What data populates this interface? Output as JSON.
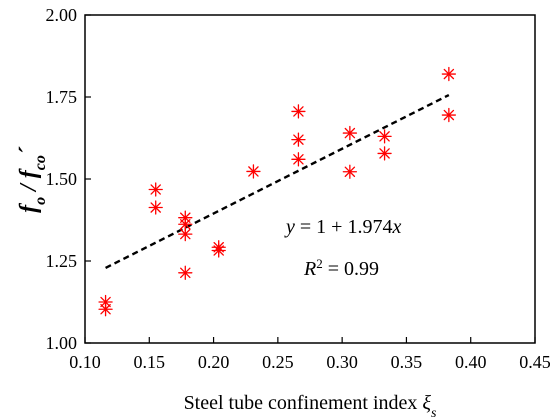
{
  "chart_data": {
    "type": "scatter",
    "xlabel": "Steel tube confinement index ",
    "xlabel_symbol": "ξ",
    "xlabel_symbol_sub": "s",
    "ylabel_parts": {
      "f1": "f",
      "sub1": "o",
      "slash": " / ",
      "f2": "f",
      "sub2": "co",
      "prime": "´"
    },
    "xlim": [
      0.1,
      0.45
    ],
    "ylim": [
      1.0,
      2.0
    ],
    "x_ticks": [
      "0.10",
      "0.15",
      "0.20",
      "0.25",
      "0.30",
      "0.35",
      "0.40",
      "0.45"
    ],
    "y_ticks": [
      "1.00",
      "1.25",
      "1.50",
      "1.75",
      "2.00"
    ],
    "grid": false,
    "marker_color": "#ff0000",
    "fit_color": "#000000",
    "points": [
      {
        "x": 0.116,
        "y": 1.125
      },
      {
        "x": 0.116,
        "y": 1.103
      },
      {
        "x": 0.155,
        "y": 1.468
      },
      {
        "x": 0.155,
        "y": 1.413
      },
      {
        "x": 0.178,
        "y": 1.382
      },
      {
        "x": 0.178,
        "y": 1.362
      },
      {
        "x": 0.178,
        "y": 1.332
      },
      {
        "x": 0.178,
        "y": 1.214
      },
      {
        "x": 0.204,
        "y": 1.292
      },
      {
        "x": 0.204,
        "y": 1.282
      },
      {
        "x": 0.231,
        "y": 1.523
      },
      {
        "x": 0.266,
        "y": 1.706
      },
      {
        "x": 0.266,
        "y": 1.62
      },
      {
        "x": 0.266,
        "y": 1.56
      },
      {
        "x": 0.306,
        "y": 1.64
      },
      {
        "x": 0.306,
        "y": 1.522
      },
      {
        "x": 0.333,
        "y": 1.63
      },
      {
        "x": 0.333,
        "y": 1.578
      },
      {
        "x": 0.383,
        "y": 1.82
      },
      {
        "x": 0.383,
        "y": 1.695
      }
    ],
    "fit_line": {
      "intercept": 1,
      "slope": 1.974,
      "x_range": [
        0.116,
        0.383
      ]
    },
    "annotations": {
      "eq_y": "y",
      "eq_rest": " = 1 + 1.974",
      "eq_x": "x",
      "r2_r": "R",
      "r2_sup": "2",
      "r2_rest": " = 0.99"
    }
  }
}
